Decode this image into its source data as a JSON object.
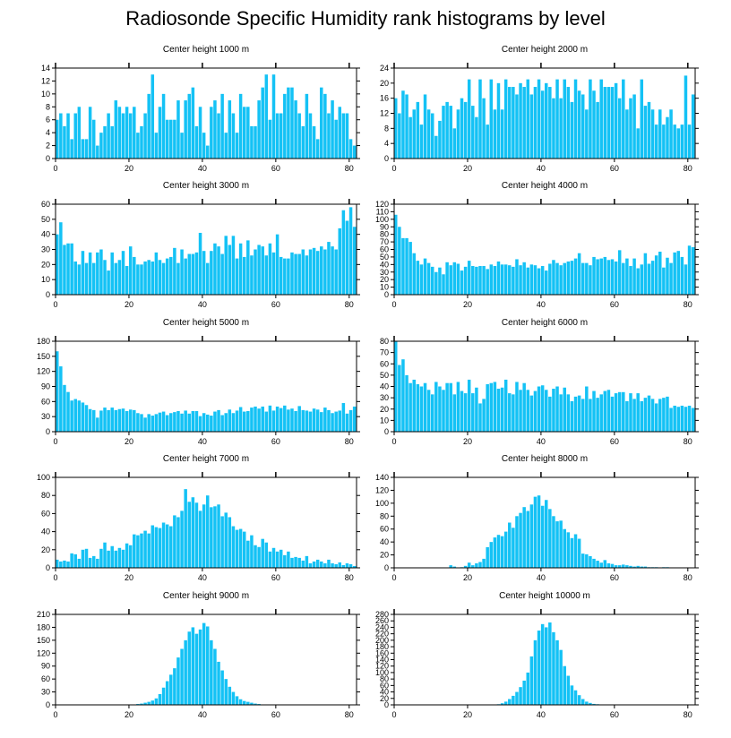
{
  "title": "Radiosonde Specific Humidity rank histograms by level",
  "bar_color": "#14c2f5",
  "axis_color": "#000000",
  "chart_data": [
    {
      "type": "bar",
      "title": "Center height 1000 m",
      "xlabel": "",
      "ylabel": "",
      "xlim": [
        0,
        82
      ],
      "ylim": [
        0,
        14
      ],
      "x_ticks": [
        0,
        20,
        40,
        60,
        80
      ],
      "y_ticks": [
        0,
        2,
        4,
        6,
        8,
        10,
        12,
        14
      ],
      "values": [
        6,
        7,
        5,
        7,
        3,
        7,
        8,
        3,
        3,
        8,
        6,
        2,
        4,
        5,
        7,
        5,
        9,
        8,
        7,
        8,
        7,
        8,
        4,
        5,
        7,
        10,
        13,
        4,
        8,
        10,
        6,
        6,
        6,
        9,
        4,
        9,
        10,
        11,
        5,
        8,
        4,
        2,
        8,
        9,
        7,
        10,
        4,
        9,
        7,
        4,
        10,
        8,
        8,
        5,
        5,
        9,
        11,
        13,
        6,
        13,
        7,
        7,
        10,
        11,
        11,
        9,
        7,
        5,
        10,
        7,
        5,
        3,
        11,
        10,
        7,
        9,
        6,
        8,
        7,
        7,
        3,
        2
      ]
    },
    {
      "type": "bar",
      "title": "Center height 2000 m",
      "xlabel": "",
      "ylabel": "",
      "xlim": [
        0,
        82
      ],
      "ylim": [
        0,
        24
      ],
      "x_ticks": [
        0,
        20,
        40,
        60,
        80
      ],
      "y_ticks": [
        0,
        4,
        8,
        12,
        16,
        20,
        24
      ],
      "values": [
        16,
        12,
        18,
        17,
        11,
        13,
        15,
        9,
        17,
        13,
        12,
        6,
        10,
        14,
        15,
        14,
        8,
        13,
        16,
        15,
        21,
        14,
        11,
        21,
        16,
        9,
        21,
        13,
        20,
        13,
        21,
        19,
        19,
        17,
        20,
        19,
        21,
        17,
        19,
        21,
        18,
        20,
        19,
        16,
        21,
        16,
        21,
        19,
        15,
        21,
        18,
        17,
        13,
        21,
        18,
        15,
        21,
        19,
        19,
        19,
        20,
        16,
        21,
        13,
        16,
        17,
        8,
        21,
        14,
        15,
        13,
        9,
        13,
        9,
        11,
        13,
        9,
        8,
        9,
        22,
        9,
        17
      ]
    },
    {
      "type": "bar",
      "title": "Center height 3000 m",
      "xlabel": "",
      "ylabel": "",
      "xlim": [
        0,
        82
      ],
      "ylim": [
        0,
        60
      ],
      "x_ticks": [
        0,
        20,
        40,
        60,
        80
      ],
      "y_ticks": [
        0,
        10,
        20,
        30,
        40,
        50,
        60
      ],
      "values": [
        40,
        48,
        33,
        34,
        34,
        22,
        20,
        29,
        21,
        28,
        21,
        28,
        30,
        23,
        16,
        28,
        21,
        23,
        29,
        19,
        32,
        25,
        20,
        20,
        22,
        23,
        22,
        28,
        23,
        21,
        24,
        25,
        31,
        21,
        30,
        24,
        27,
        27,
        28,
        41,
        29,
        21,
        29,
        34,
        32,
        27,
        39,
        33,
        39,
        24,
        34,
        25,
        36,
        26,
        30,
        33,
        32,
        26,
        34,
        28,
        40,
        25,
        24,
        24,
        28,
        27,
        27,
        30,
        26,
        30,
        31,
        29,
        32,
        30,
        35,
        32,
        30,
        44,
        56,
        49,
        58,
        45
      ]
    },
    {
      "type": "bar",
      "title": "Center height 4000 m",
      "xlabel": "",
      "ylabel": "",
      "xlim": [
        0,
        82
      ],
      "ylim": [
        0,
        120
      ],
      "x_ticks": [
        0,
        20,
        40,
        60,
        80
      ],
      "y_ticks": [
        0,
        10,
        20,
        30,
        40,
        50,
        60,
        70,
        80,
        90,
        100,
        110,
        120
      ],
      "values": [
        106,
        90,
        75,
        75,
        70,
        55,
        45,
        40,
        48,
        42,
        37,
        30,
        36,
        27,
        43,
        39,
        43,
        41,
        32,
        37,
        45,
        38,
        37,
        38,
        38,
        34,
        40,
        38,
        44,
        40,
        40,
        39,
        37,
        47,
        39,
        43,
        36,
        40,
        39,
        35,
        38,
        32,
        41,
        46,
        42,
        39,
        42,
        44,
        45,
        48,
        55,
        42,
        42,
        39,
        50,
        47,
        48,
        50,
        46,
        47,
        44,
        59,
        42,
        48,
        38,
        48,
        35,
        40,
        55,
        41,
        45,
        52,
        57,
        36,
        49,
        42,
        56,
        58,
        50,
        40,
        65,
        63
      ]
    },
    {
      "type": "bar",
      "title": "Center height 5000 m",
      "xlabel": "",
      "ylabel": "",
      "xlim": [
        0,
        82
      ],
      "ylim": [
        0,
        180
      ],
      "x_ticks": [
        0,
        20,
        40,
        60,
        80
      ],
      "y_ticks": [
        0,
        30,
        60,
        90,
        120,
        150,
        180
      ],
      "values": [
        160,
        130,
        93,
        79,
        62,
        65,
        62,
        58,
        53,
        45,
        43,
        28,
        42,
        48,
        43,
        48,
        43,
        45,
        46,
        41,
        44,
        43,
        37,
        35,
        28,
        35,
        32,
        35,
        38,
        40,
        33,
        37,
        39,
        41,
        36,
        42,
        36,
        41,
        41,
        31,
        37,
        34,
        32,
        40,
        43,
        33,
        37,
        44,
        37,
        42,
        49,
        40,
        41,
        48,
        50,
        46,
        50,
        40,
        52,
        42,
        50,
        47,
        52,
        44,
        46,
        41,
        51,
        43,
        42,
        40,
        46,
        44,
        39,
        48,
        43,
        37,
        40,
        42,
        57,
        36,
        43,
        50
      ]
    },
    {
      "type": "bar",
      "title": "Center height 6000 m",
      "xlabel": "",
      "ylabel": "",
      "xlim": [
        0,
        82
      ],
      "ylim": [
        0,
        80
      ],
      "x_ticks": [
        0,
        20,
        40,
        60,
        80
      ],
      "y_ticks": [
        0,
        10,
        20,
        30,
        40,
        50,
        60,
        70,
        80
      ],
      "values": [
        80,
        59,
        64,
        50,
        43,
        46,
        42,
        40,
        43,
        37,
        33,
        44,
        40,
        37,
        43,
        43,
        33,
        44,
        36,
        34,
        46,
        34,
        39,
        25,
        29,
        42,
        43,
        44,
        38,
        39,
        46,
        34,
        33,
        44,
        37,
        43,
        37,
        32,
        36,
        40,
        41,
        37,
        31,
        38,
        40,
        33,
        39,
        33,
        27,
        31,
        32,
        29,
        40,
        29,
        36,
        30,
        33,
        36,
        37,
        31,
        34,
        35,
        35,
        27,
        34,
        29,
        34,
        27,
        30,
        32,
        29,
        25,
        29,
        30,
        31,
        21,
        23,
        22,
        23,
        22,
        23,
        21
      ]
    },
    {
      "type": "bar",
      "title": "Center height 7000 m",
      "xlabel": "",
      "ylabel": "",
      "xlim": [
        0,
        82
      ],
      "ylim": [
        0,
        100
      ],
      "x_ticks": [
        0,
        20,
        40,
        60,
        80
      ],
      "y_ticks": [
        0,
        20,
        40,
        60,
        80,
        100
      ],
      "values": [
        9,
        7,
        8,
        7,
        16,
        15,
        10,
        20,
        21,
        11,
        13,
        10,
        21,
        28,
        19,
        24,
        19,
        22,
        20,
        27,
        25,
        37,
        36,
        38,
        41,
        38,
        47,
        45,
        44,
        50,
        48,
        46,
        58,
        56,
        63,
        87,
        73,
        78,
        72,
        63,
        70,
        80,
        67,
        68,
        70,
        57,
        61,
        56,
        46,
        42,
        43,
        40,
        30,
        36,
        25,
        23,
        32,
        28,
        18,
        22,
        18,
        20,
        14,
        18,
        11,
        12,
        11,
        8,
        13,
        5,
        7,
        9,
        7,
        5,
        9,
        5,
        4,
        6,
        3,
        5,
        4,
        2
      ]
    },
    {
      "type": "bar",
      "title": "Center height 8000 m",
      "xlabel": "",
      "ylabel": "",
      "xlim": [
        0,
        82
      ],
      "ylim": [
        0,
        140
      ],
      "x_ticks": [
        0,
        20,
        40,
        60,
        80
      ],
      "y_ticks": [
        0,
        20,
        40,
        60,
        80,
        100,
        120,
        140
      ],
      "values": [
        0,
        0,
        0,
        0,
        0,
        0,
        0,
        0,
        0,
        0,
        0,
        0,
        0,
        0,
        0,
        4,
        2,
        0,
        1,
        3,
        8,
        4,
        7,
        9,
        14,
        32,
        40,
        47,
        51,
        49,
        56,
        70,
        62,
        80,
        85,
        94,
        88,
        98,
        110,
        112,
        96,
        105,
        91,
        80,
        72,
        73,
        60,
        55,
        46,
        52,
        45,
        22,
        21,
        18,
        14,
        11,
        8,
        12,
        7,
        6,
        4,
        4,
        5,
        4,
        3,
        2,
        3,
        2,
        2,
        1,
        1,
        1,
        0,
        1,
        1,
        0,
        0,
        0,
        0,
        0,
        0,
        0
      ]
    },
    {
      "type": "bar",
      "title": "Center height 9000 m",
      "xlabel": "",
      "ylabel": "",
      "xlim": [
        0,
        82
      ],
      "ylim": [
        0,
        210
      ],
      "x_ticks": [
        0,
        20,
        40,
        60,
        80
      ],
      "y_ticks": [
        0,
        30,
        60,
        90,
        120,
        150,
        180,
        210
      ],
      "values": [
        0,
        0,
        0,
        0,
        0,
        0,
        0,
        0,
        0,
        0,
        0,
        0,
        0,
        0,
        0,
        0,
        0,
        0,
        0,
        0,
        0,
        0,
        2,
        3,
        5,
        7,
        10,
        15,
        25,
        40,
        55,
        70,
        85,
        110,
        130,
        150,
        170,
        180,
        165,
        175,
        190,
        182,
        150,
        130,
        100,
        80,
        60,
        42,
        30,
        20,
        13,
        9,
        7,
        5,
        3,
        2,
        1,
        0,
        0,
        0,
        0,
        0,
        0,
        0,
        0,
        0,
        0,
        0,
        0,
        0,
        0,
        0,
        0,
        0,
        0,
        0,
        0,
        0,
        0,
        0,
        0,
        0
      ]
    },
    {
      "type": "bar",
      "title": "Center height 10000 m",
      "xlabel": "",
      "ylabel": "",
      "xlim": [
        0,
        82
      ],
      "ylim": [
        0,
        280
      ],
      "x_ticks": [
        0,
        20,
        40,
        60,
        80
      ],
      "y_ticks": [
        0,
        20,
        40,
        60,
        80,
        100,
        120,
        140,
        160,
        180,
        200,
        220,
        240,
        260,
        280
      ],
      "values": [
        0,
        0,
        0,
        0,
        0,
        0,
        0,
        0,
        0,
        0,
        0,
        0,
        0,
        0,
        0,
        0,
        0,
        0,
        0,
        0,
        0,
        0,
        0,
        0,
        0,
        0,
        0,
        0,
        2,
        5,
        10,
        18,
        28,
        40,
        55,
        75,
        100,
        150,
        200,
        230,
        250,
        240,
        255,
        225,
        200,
        170,
        120,
        90,
        60,
        45,
        30,
        18,
        10,
        6,
        3,
        2,
        1,
        0,
        0,
        0,
        0,
        0,
        0,
        0,
        0,
        0,
        0,
        0,
        0,
        0,
        0,
        0,
        0,
        0,
        0,
        0,
        0,
        0,
        0,
        0,
        0,
        0
      ]
    }
  ]
}
